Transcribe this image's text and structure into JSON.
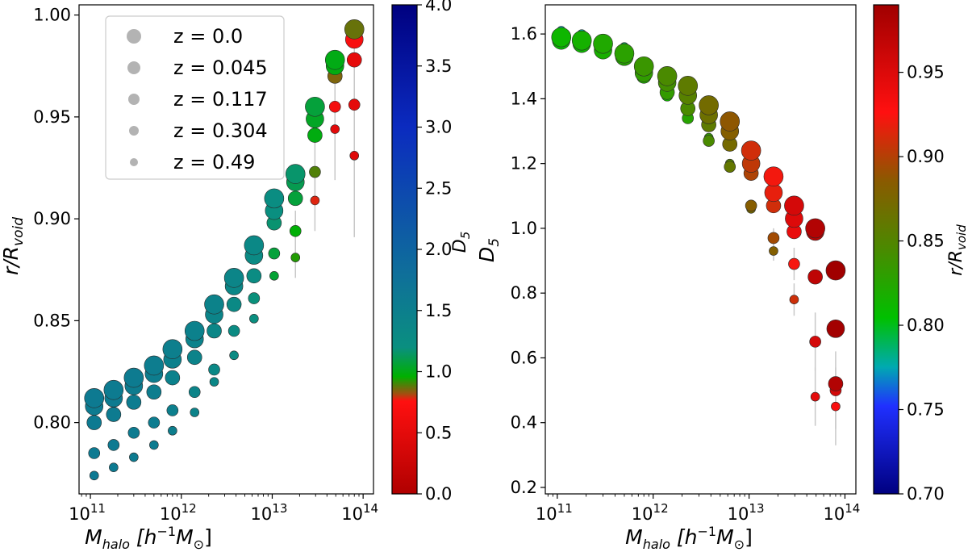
{
  "chart_data": [
    {
      "type": "scatter",
      "panel": "left",
      "xlabel_main": "M",
      "xlabel_sub": "halo",
      "xlabel_unit_open": " [h",
      "xlabel_unit_exp": "−1",
      "xlabel_unit_mid": "M",
      "xlabel_unit_sub": "⊙",
      "xlabel_unit_close": "]",
      "ylabel_main": "r/R",
      "ylabel_sub": "void",
      "x_scale": "log",
      "xlim": [
        75000000000.0,
        130000000000000.0
      ],
      "ylim": [
        0.765,
        1.005
      ],
      "x_ticks": [
        {
          "value": 100000000000.0,
          "base": "10",
          "exp": "11"
        },
        {
          "value": 1000000000000.0,
          "base": "10",
          "exp": "12"
        },
        {
          "value": 10000000000000.0,
          "base": "10",
          "exp": "13"
        },
        {
          "value": 100000000000000.0,
          "base": "10",
          "exp": "14"
        }
      ],
      "y_ticks": [
        {
          "value": 0.8,
          "label": "0.80"
        },
        {
          "value": 0.85,
          "label": "0.85"
        },
        {
          "value": 0.9,
          "label": "0.90"
        },
        {
          "value": 0.95,
          "label": "0.95"
        },
        {
          "value": 1.0,
          "label": "1.00"
        }
      ],
      "color_by": "D5",
      "colorbar": {
        "label_main": "D",
        "label_sub": "5",
        "range": [
          0.0,
          4.0
        ],
        "ticks": [
          {
            "value": 0.0,
            "label": "0.0"
          },
          {
            "value": 0.5,
            "label": "0.5"
          },
          {
            "value": 1.0,
            "label": "1.0"
          },
          {
            "value": 1.5,
            "label": "1.5"
          },
          {
            "value": 2.0,
            "label": "2.0"
          },
          {
            "value": 2.5,
            "label": "2.5"
          },
          {
            "value": 3.0,
            "label": "3.0"
          },
          {
            "value": 3.5,
            "label": "3.5"
          },
          {
            "value": 4.0,
            "label": "4.0"
          }
        ]
      },
      "legend": {
        "placement": "top-left",
        "entries": [
          {
            "label": "z = 0.0",
            "size_rank": 5
          },
          {
            "label": "z = 0.045",
            "size_rank": 4
          },
          {
            "label": "z = 0.117",
            "size_rank": 3
          },
          {
            "label": "z = 0.304",
            "size_rank": 2
          },
          {
            "label": "z = 0.49",
            "size_rank": 1
          }
        ]
      },
      "mass_bins": [
        110000000000.0,
        180000000000.0,
        300000000000.0,
        500000000000.0,
        800000000000.0,
        1400000000000.0,
        2300000000000.0,
        3800000000000.0,
        6300000000000.0,
        10500000000000.0,
        18000000000000.0,
        29500000000000.0,
        49000000000000.0,
        80000000000000.0
      ],
      "series": [
        {
          "name": "z = 0.0",
          "y": [
            0.812,
            0.816,
            0.822,
            0.828,
            0.836,
            0.845,
            0.858,
            0.871,
            0.887,
            0.91,
            0.922,
            0.955,
            0.978,
            0.993
          ],
          "c": [
            1.59,
            1.58,
            1.57,
            1.54,
            1.5,
            1.47,
            1.44,
            1.38,
            1.33,
            1.24,
            1.16,
            1.07,
            1.0,
            0.87
          ]
        },
        {
          "name": "z = 0.045",
          "y": [
            0.808,
            0.812,
            0.818,
            0.824,
            0.831,
            0.841,
            0.853,
            0.867,
            0.882,
            0.904,
            0.918,
            0.949,
            0.975,
            0.988
          ],
          "c": [
            1.58,
            1.57,
            1.55,
            1.53,
            1.48,
            1.45,
            1.41,
            1.35,
            1.3,
            1.2,
            1.11,
            1.03,
            0.99,
            0.69
          ]
        },
        {
          "name": "z = 0.117",
          "y": [
            0.8,
            0.804,
            0.81,
            0.815,
            0.822,
            0.832,
            0.845,
            0.858,
            0.872,
            0.898,
            0.91,
            0.941,
            0.97,
            0.978
          ],
          "c": [
            1.59,
            1.58,
            1.56,
            1.53,
            1.47,
            1.42,
            1.37,
            1.32,
            1.26,
            1.17,
            1.07,
            0.99,
            0.85,
            0.52
          ]
        },
        {
          "name": "z = 0.304",
          "y": [
            0.785,
            0.789,
            0.795,
            0.8,
            0.806,
            0.815,
            0.826,
            0.845,
            0.861,
            0.883,
            0.894,
            0.923,
            0.955,
            0.956
          ],
          "c": [
            1.6,
            1.59,
            1.57,
            1.55,
            1.5,
            1.41,
            1.34,
            1.27,
            1.19,
            1.07,
            0.97,
            0.89,
            0.65,
            0.5
          ]
        },
        {
          "name": "z = 0.49",
          "y": [
            0.774,
            0.778,
            0.783,
            0.789,
            0.796,
            0.805,
            0.82,
            0.833,
            0.851,
            0.872,
            0.881,
            0.909,
            0.944,
            0.931
          ],
          "c": [
            1.61,
            1.6,
            1.58,
            1.56,
            1.51,
            1.43,
            1.35,
            1.28,
            1.2,
            1.06,
            0.93,
            0.78,
            0.48,
            0.45
          ]
        }
      ]
    },
    {
      "type": "scatter",
      "panel": "right",
      "xlabel_main": "M",
      "xlabel_sub": "halo",
      "xlabel_unit_open": " [h",
      "xlabel_unit_exp": "−1",
      "xlabel_unit_mid": "M",
      "xlabel_unit_sub": "⊙",
      "xlabel_unit_close": "]",
      "ylabel_main": "D",
      "ylabel_sub": "5",
      "x_scale": "log",
      "xlim": [
        75000000000.0,
        130000000000000.0
      ],
      "ylim": [
        0.18,
        1.69
      ],
      "x_ticks": [
        {
          "value": 100000000000.0,
          "base": "10",
          "exp": "11"
        },
        {
          "value": 1000000000000.0,
          "base": "10",
          "exp": "12"
        },
        {
          "value": 10000000000000.0,
          "base": "10",
          "exp": "13"
        },
        {
          "value": 100000000000000.0,
          "base": "10",
          "exp": "14"
        }
      ],
      "y_ticks": [
        {
          "value": 0.2,
          "label": "0.2"
        },
        {
          "value": 0.4,
          "label": "0.4"
        },
        {
          "value": 0.6,
          "label": "0.6"
        },
        {
          "value": 0.8,
          "label": "0.8"
        },
        {
          "value": 1.0,
          "label": "1.0"
        },
        {
          "value": 1.2,
          "label": "1.2"
        },
        {
          "value": 1.4,
          "label": "1.4"
        },
        {
          "value": 1.6,
          "label": "1.6"
        }
      ],
      "color_by": "r/R_void",
      "colorbar": {
        "label_main": "r/R",
        "label_sub": "void",
        "range": [
          0.7,
          0.99
        ],
        "ticks": [
          {
            "value": 0.7,
            "label": "0.70"
          },
          {
            "value": 0.75,
            "label": "0.75"
          },
          {
            "value": 0.8,
            "label": "0.80"
          },
          {
            "value": 0.85,
            "label": "0.85"
          },
          {
            "value": 0.9,
            "label": "0.90"
          },
          {
            "value": 0.95,
            "label": "0.95"
          }
        ]
      },
      "note": "same mass bins and redshift series as left panel; y = D5, colour = r/R_void"
    }
  ]
}
